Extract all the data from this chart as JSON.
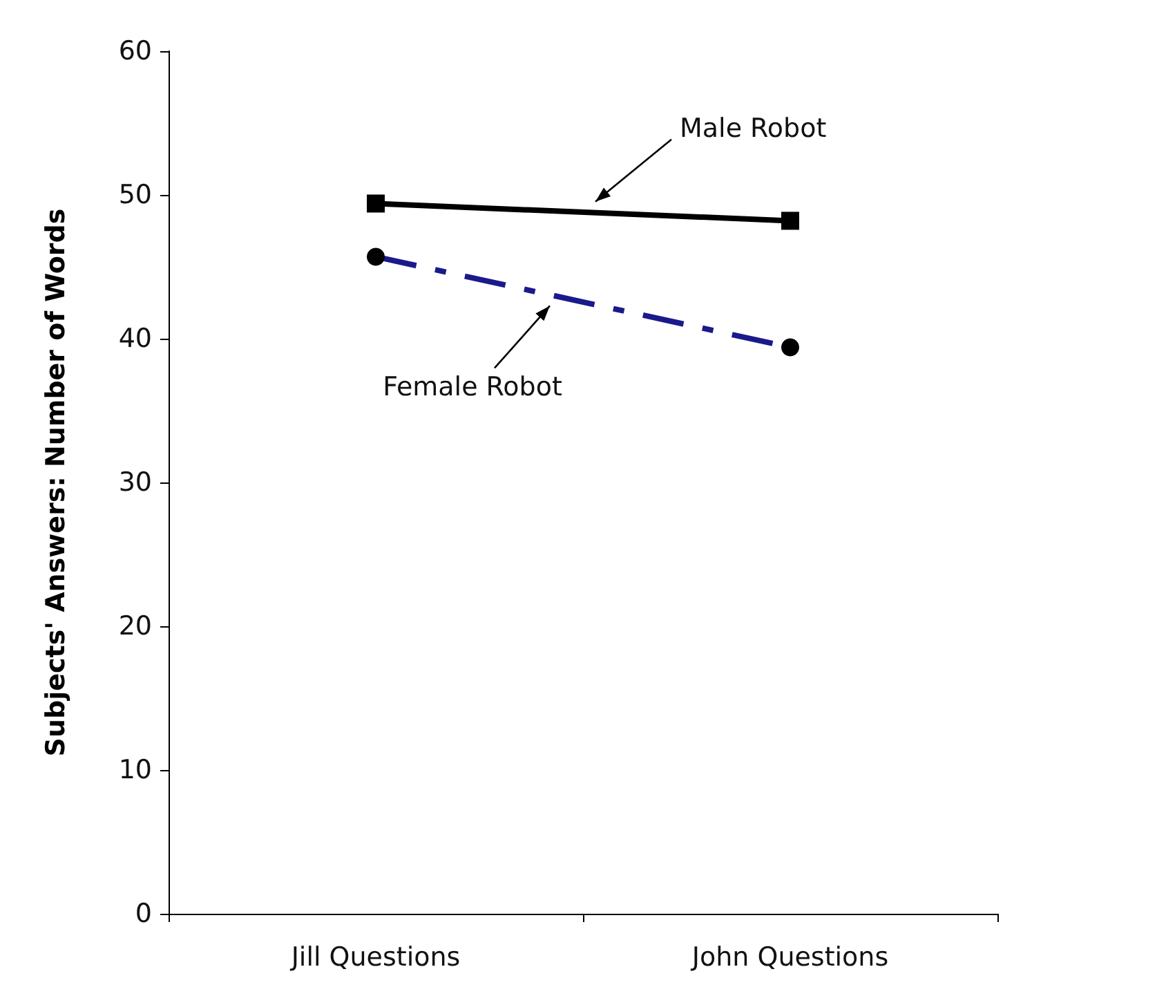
{
  "chart_data": {
    "type": "line",
    "ylabel": "Subjects' Answers: Number of Words",
    "categories": [
      "Jill Questions",
      "John Questions"
    ],
    "series": [
      {
        "name": "Male Robot",
        "color": "#000000",
        "values": [
          49.4,
          48.2
        ],
        "marker": "square",
        "line_style": "solid"
      },
      {
        "name": "Female Robot",
        "color": "#1a1a8c",
        "values": [
          45.7,
          39.4
        ],
        "marker": "circle",
        "line_style": "dashed"
      }
    ],
    "ylim": [
      0,
      60
    ],
    "yticks": [
      0,
      10,
      20,
      30,
      40,
      50,
      60
    ],
    "grid": false
  }
}
